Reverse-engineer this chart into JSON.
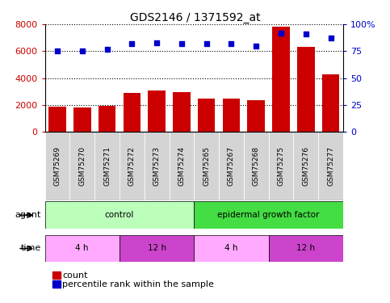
{
  "title": "GDS2146 / 1371592_at",
  "samples": [
    "GSM75269",
    "GSM75270",
    "GSM75271",
    "GSM75272",
    "GSM75273",
    "GSM75274",
    "GSM75265",
    "GSM75267",
    "GSM75268",
    "GSM75275",
    "GSM75276",
    "GSM75277"
  ],
  "counts": [
    1850,
    1820,
    1950,
    2900,
    3100,
    2980,
    2480,
    2480,
    2350,
    7800,
    6300,
    4300
  ],
  "percentiles": [
    75,
    75,
    77,
    82,
    83,
    82,
    82,
    82,
    80,
    92,
    91,
    87
  ],
  "ylim_left": [
    0,
    8000
  ],
  "ylim_right": [
    0,
    100
  ],
  "yticks_left": [
    0,
    2000,
    4000,
    6000,
    8000
  ],
  "yticks_right": [
    0,
    25,
    50,
    75,
    100
  ],
  "ytick_labels_right": [
    "0",
    "25",
    "50",
    "75",
    "100%"
  ],
  "bar_color": "#cc0000",
  "dot_color": "#0000cc",
  "agent_row": [
    {
      "label": "control",
      "start": 0,
      "end": 6,
      "color": "#bbffbb"
    },
    {
      "label": "epidermal growth factor",
      "start": 6,
      "end": 12,
      "color": "#44dd44"
    }
  ],
  "time_row": [
    {
      "label": "4 h",
      "start": 0,
      "end": 3,
      "color": "#ffaaff"
    },
    {
      "label": "12 h",
      "start": 3,
      "end": 6,
      "color": "#cc44cc"
    },
    {
      "label": "4 h",
      "start": 6,
      "end": 9,
      "color": "#ffaaff"
    },
    {
      "label": "12 h",
      "start": 9,
      "end": 12,
      "color": "#cc44cc"
    }
  ],
  "legend_count_color": "#cc0000",
  "legend_dot_color": "#0000cc",
  "legend_count_label": "count",
  "legend_dot_label": "percentile rank within the sample",
  "agent_label": "agent",
  "time_label": "time"
}
